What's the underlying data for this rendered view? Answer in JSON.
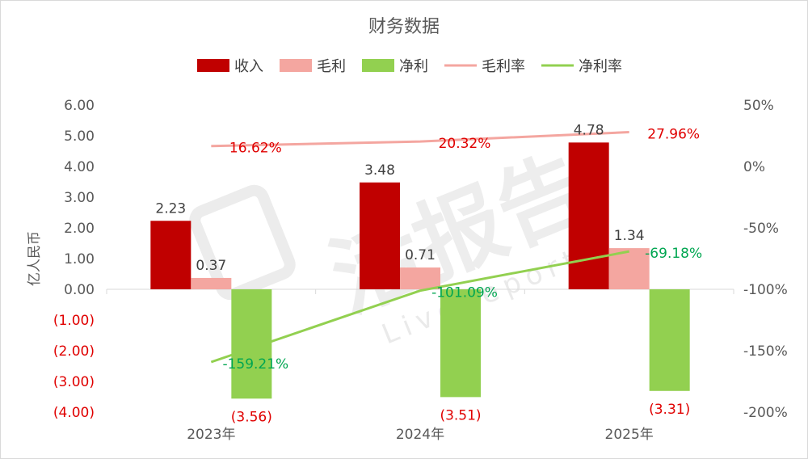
{
  "chart_data": {
    "type": "bar",
    "title": "财务数据",
    "ylabel": "亿人民币",
    "categories": [
      "2023年",
      "2024年",
      "2025年"
    ],
    "ylim": [
      -4,
      6
    ],
    "y2lim": [
      -200,
      50
    ],
    "left_ticks": [
      "6.00",
      "5.00",
      "4.00",
      "3.00",
      "2.00",
      "1.00",
      "0.00",
      "(1.00)",
      "(2.00)",
      "(3.00)",
      "(4.00)"
    ],
    "right_ticks": [
      "50%",
      "0%",
      "-50%",
      "-100%",
      "-150%",
      "-200%"
    ],
    "series": [
      {
        "name": "收入",
        "kind": "bar",
        "axis": "left",
        "color": "#c00000",
        "values": [
          2.23,
          3.48,
          4.78
        ],
        "labels": [
          "2.23",
          "3.48",
          "4.78"
        ]
      },
      {
        "name": "毛利",
        "kind": "bar",
        "axis": "left",
        "color": "#f4a6a0",
        "values": [
          0.37,
          0.71,
          1.34
        ],
        "labels": [
          "0.37",
          "0.71",
          "1.34"
        ]
      },
      {
        "name": "净利",
        "kind": "bar",
        "axis": "left",
        "color": "#92d050",
        "values": [
          -3.56,
          -3.51,
          -3.31
        ],
        "labels": [
          "(3.56)",
          "(3.51)",
          "(3.31)"
        ]
      },
      {
        "name": "毛利率",
        "kind": "line",
        "axis": "right",
        "color": "#f4a6a0",
        "values": [
          16.62,
          20.32,
          27.96
        ],
        "labels": [
          "16.62%",
          "20.32%",
          "27.96%"
        ]
      },
      {
        "name": "净利率",
        "kind": "line",
        "axis": "right",
        "color": "#92d050",
        "values": [
          -159.21,
          -101.09,
          -69.18
        ],
        "labels": [
          "-159.21%",
          "-101.09%",
          "-69.18%"
        ]
      }
    ],
    "legend": "top"
  },
  "watermark": {
    "main": "活报告",
    "sub": "LiveReport"
  },
  "colors": {
    "revenue": "#c00000",
    "gross": "#f4a6a0",
    "net": "#92d050",
    "neg_label": "#e00000",
    "gross_rate_label": "#e00000",
    "net_rate_label": "#00a651"
  }
}
